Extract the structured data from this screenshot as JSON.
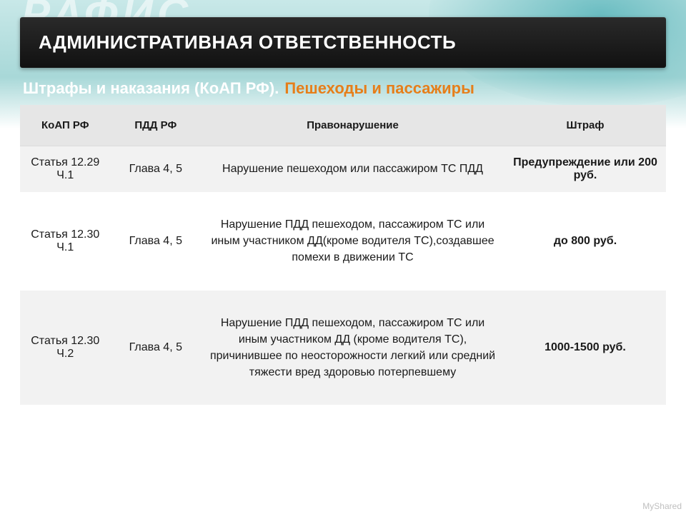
{
  "bg_text": "РАФИС",
  "header": {
    "title": "АДМИНИСТРАТИВНАЯ ОТВЕТСТВЕННОСТЬ"
  },
  "subtitle": {
    "white": "Штрафы и наказания (КоАП РФ).",
    "orange": "Пешеходы и пассажиры"
  },
  "table": {
    "columns": [
      "КоАП РФ",
      "ПДД РФ",
      "Правонарушение",
      "Штраф"
    ],
    "col_widths_pct": [
      14,
      14,
      47,
      25
    ],
    "header_bg": "#e6e6e6",
    "row_alt_bg": "#f2f2f2",
    "row_bg": "#ffffff",
    "rows": [
      {
        "koap": "Статья 12.29 Ч.1",
        "pdd": "Глава 4, 5",
        "violation": "Нарушение пешеходом или пассажиром ТС ПДД",
        "fine": "Предупреждение или 200 руб.",
        "fine_bold": true
      },
      {
        "koap": "Статья 12.30 Ч.1",
        "pdd": "Глава 4, 5",
        "violation": "Нарушение ПДД пешеходом, пассажиром ТС или иным участником ДД(кроме водителя ТС),создавшее помехи  в движении ТС",
        "fine": "до 800 руб.",
        "fine_bold": true
      },
      {
        "koap": "Статья 12.30 Ч.2",
        "pdd": "Глава 4, 5",
        "violation": "Нарушение ПДД пешеходом, пассажиром ТС или иным участником ДД (кроме водителя ТС), причинившее по неосторожности легкий или средний тяжести вред здоровью потерпевшему",
        "fine": "1000-1500 руб.",
        "fine_bold": true
      }
    ]
  },
  "watermark": "MyShared",
  "colors": {
    "title_bg": "#1a1a1a",
    "title_text": "#ffffff",
    "subtitle_orange": "#e67e1a",
    "body_text": "#1a1a1a",
    "page_bg_top": "#c8e8e8"
  },
  "typography": {
    "title_fontsize": 26,
    "subtitle_fontsize": 22,
    "th_fontsize": 15,
    "td_fontsize": 16
  }
}
